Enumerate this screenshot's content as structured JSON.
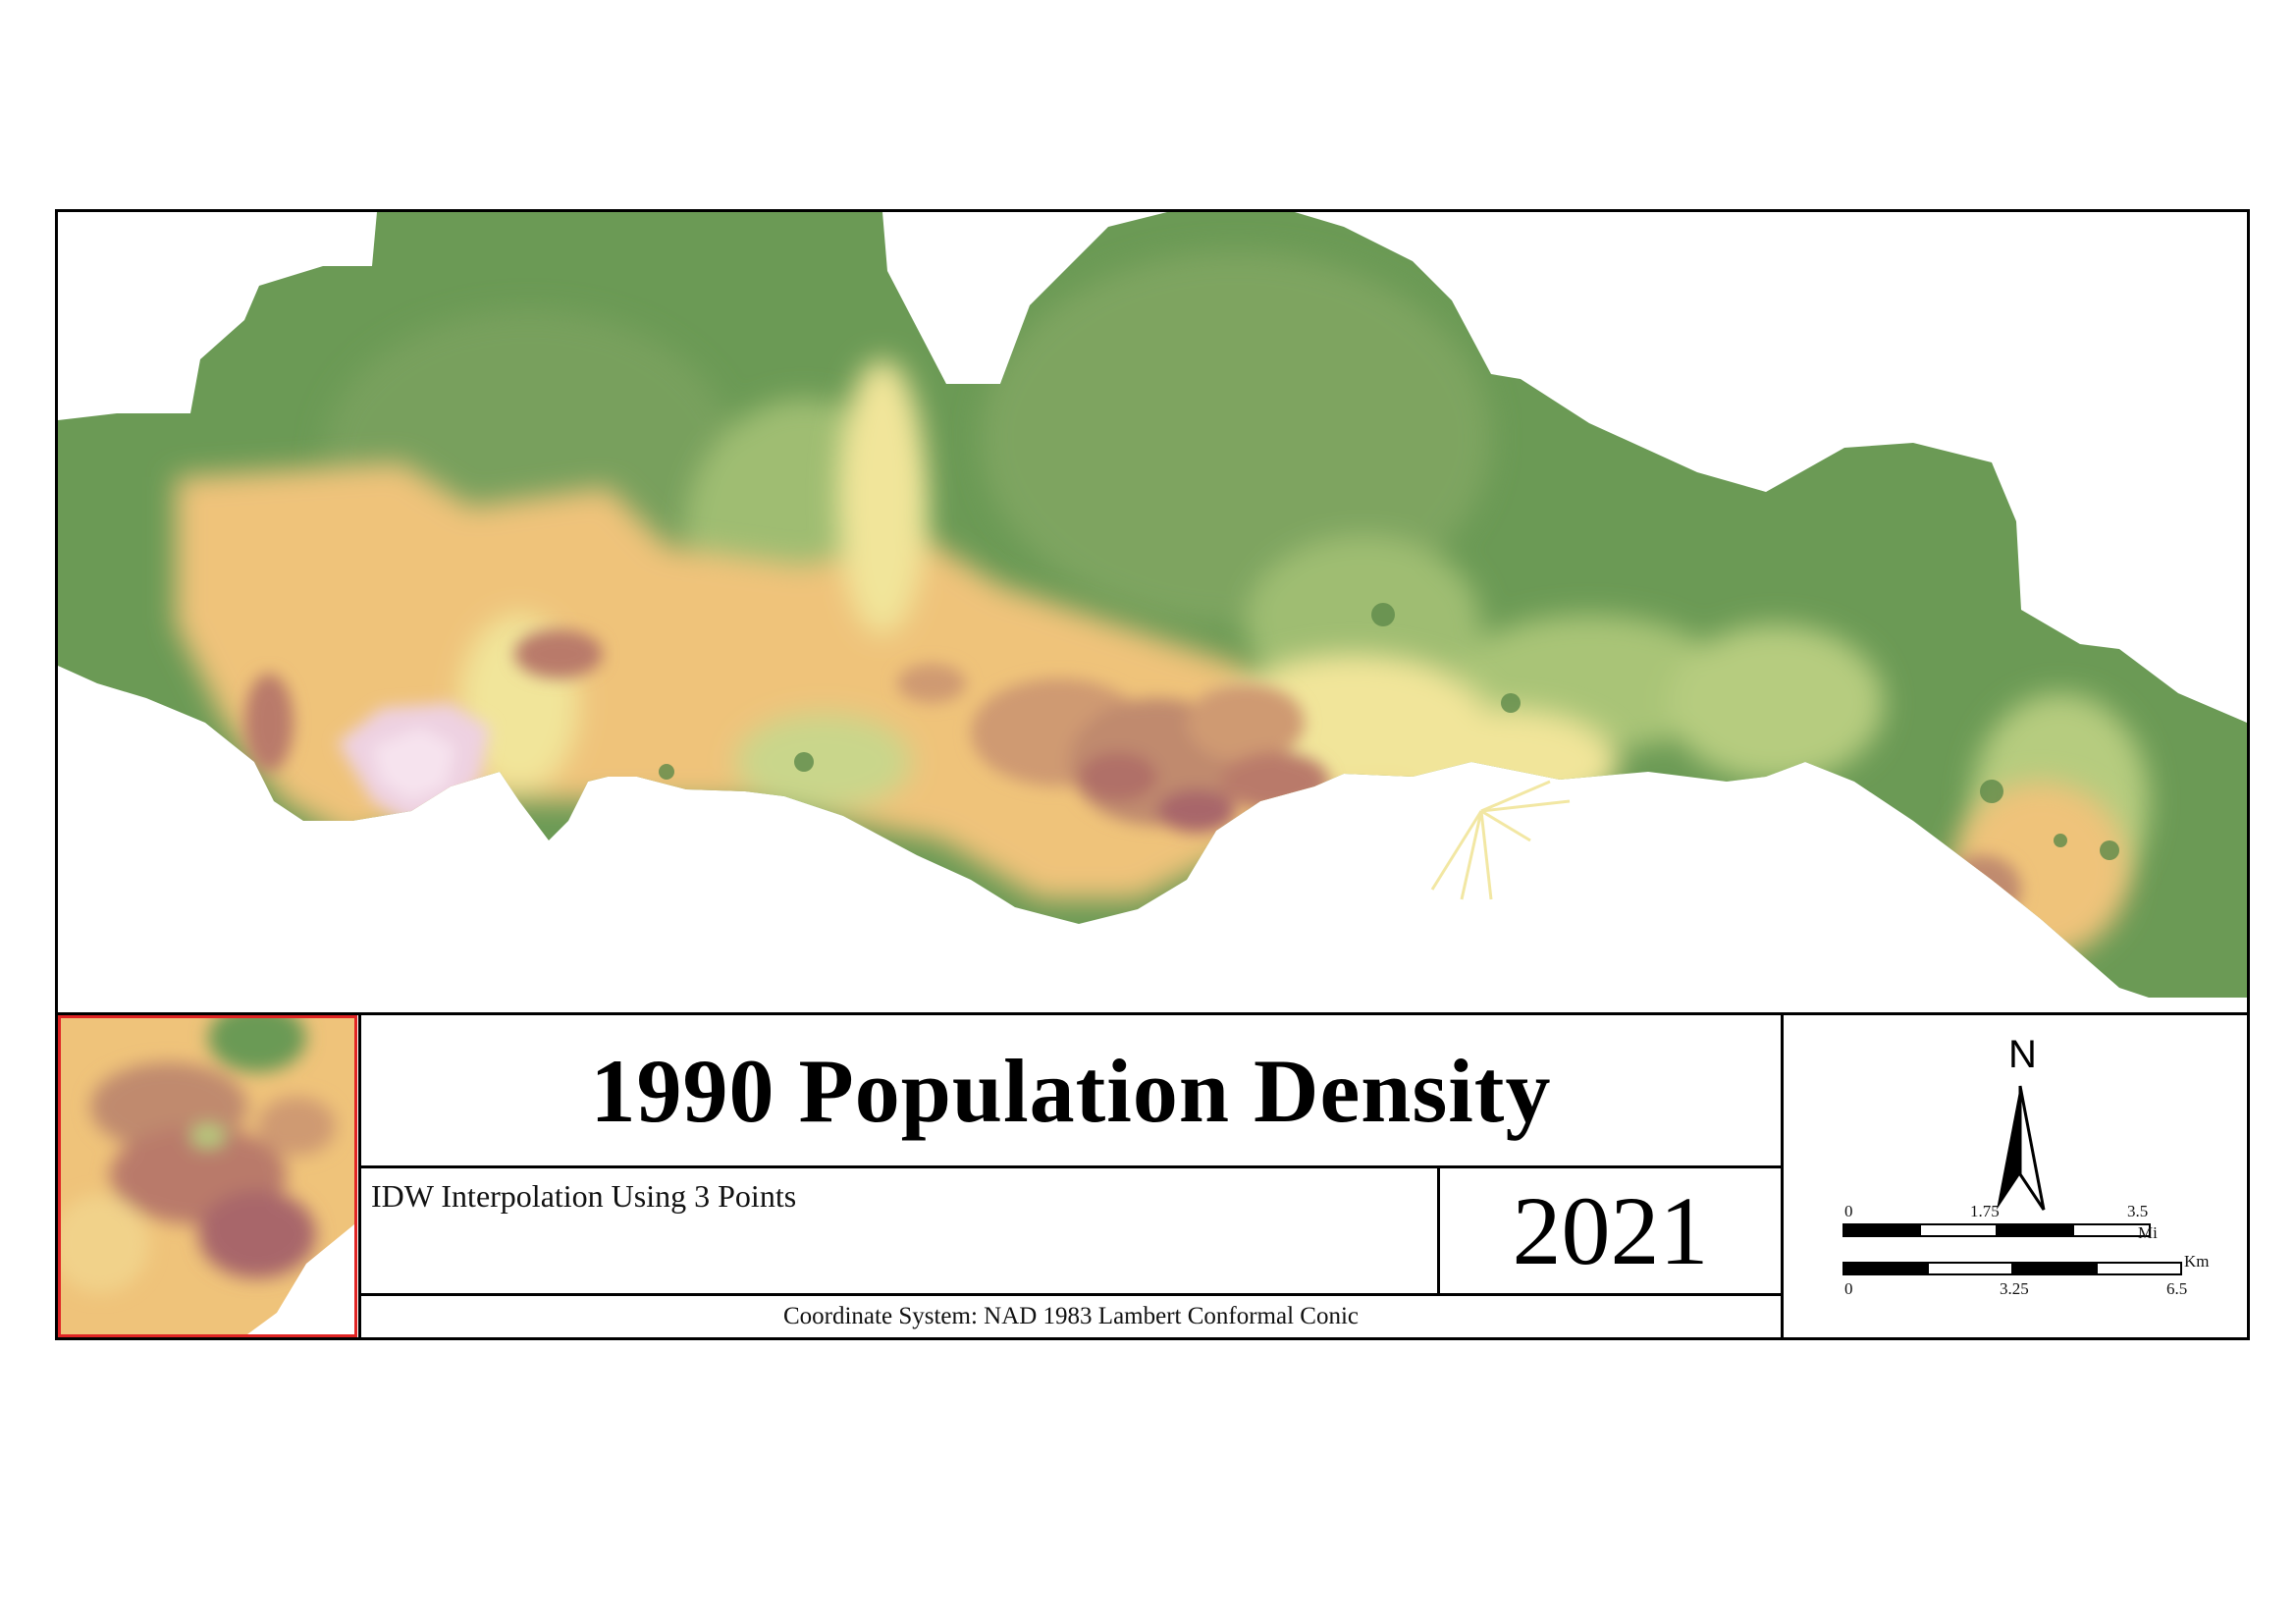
{
  "map": {
    "title": "1990 Population Density",
    "subtitle": "IDW Interpolation Using 3 Points",
    "year": "2021",
    "coordinate_system": "Coordinate System: NAD 1983 Lambert Conformal Conic",
    "north_label": "N",
    "colors": {
      "frame": "#000000",
      "inset_border": "#e02424",
      "low_density": "#6b9a55",
      "mid_low": "#b8cd7e",
      "mid": "#f1e59a",
      "mid_high": "#efc37a",
      "high": "#b97a6a",
      "highest": "#f0c8de"
    }
  },
  "scale_bar_miles": {
    "labels": [
      "0",
      "1.75",
      "3.5"
    ],
    "unit": "Mi"
  },
  "scale_bar_km": {
    "labels": [
      "0",
      "3.25",
      "6.5"
    ],
    "unit": "Km"
  }
}
